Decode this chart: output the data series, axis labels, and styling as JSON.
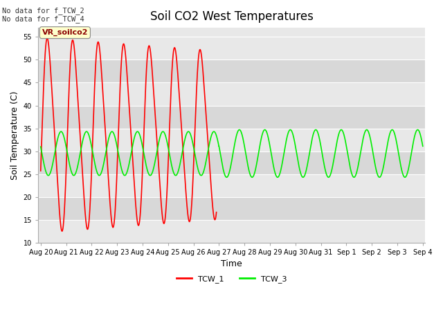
{
  "title": "Soil CO2 West Temperatures",
  "xlabel": "Time",
  "ylabel": "Soil Temperature (C)",
  "ylim": [
    10,
    57
  ],
  "annotation_text": "No data for f_TCW_2\nNo data for f_TCW_4",
  "vr_label": "VR_soilco2",
  "bg_color": "#e8e8e8",
  "plot_bg_color": "#e0e0e0",
  "legend_entries": [
    "TCW_1",
    "TCW_3"
  ],
  "tcw1_color": "#ff0000",
  "tcw3_color": "#00ee00",
  "grid_color": "#ffffff",
  "band_color1": "#d8d8d8",
  "band_color2": "#ebebeb",
  "title_fontsize": 12,
  "label_fontsize": 9,
  "tick_fontsize": 7,
  "tick_labels": [
    "Aug 20",
    "Aug 21",
    "Aug 22",
    "Aug 23",
    "Aug 24",
    "Aug 25",
    "Aug 26",
    "Aug 27",
    "Aug 28",
    "Aug 29",
    "Aug 30",
    "Aug 31",
    "Sep 1",
    "Sep 2",
    "Sep 3",
    "Sep 4"
  ],
  "yticks": [
    10,
    15,
    20,
    25,
    30,
    35,
    40,
    45,
    50,
    55
  ]
}
